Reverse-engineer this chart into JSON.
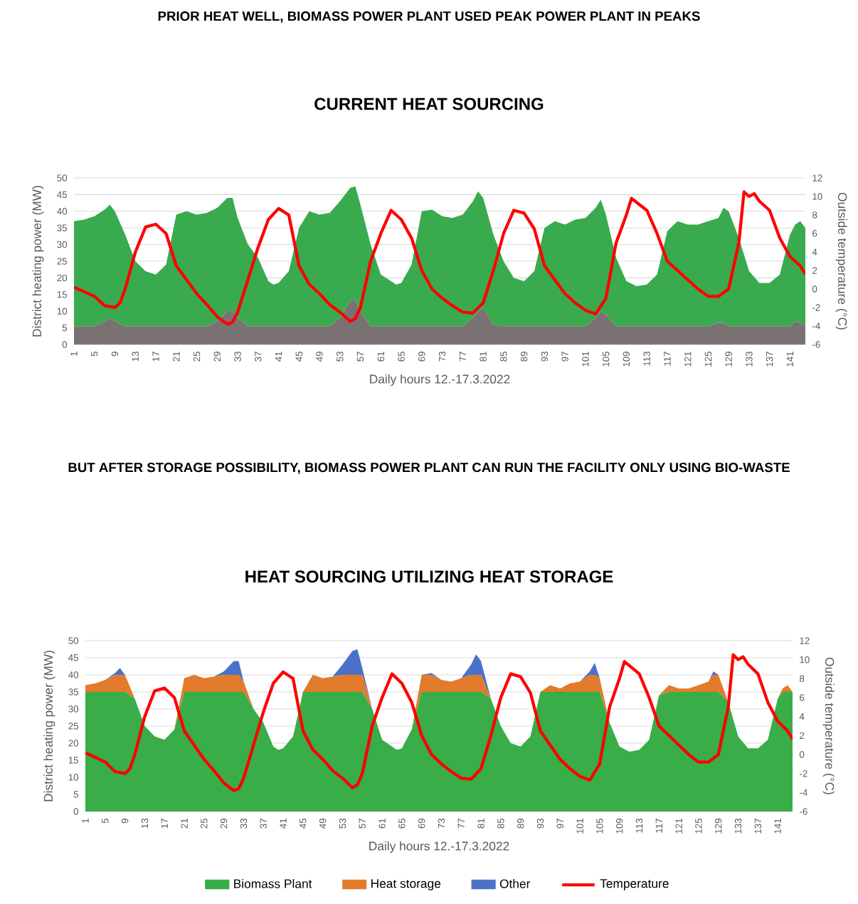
{
  "chart_data": [
    {
      "type": "area",
      "title": "CURRENT HEAT SOURCING",
      "annotations": [
        "PRIOR HEAT WELL, BIOMASS POWER PLANT USED PEAK POWER PLANT IN PEAKS"
      ],
      "xlabel": "Daily hours 12.-17.3.2022",
      "ylabel": "District heating power (MW)",
      "y2label": "Outside temperature (°C)",
      "stacked": true,
      "grid": "y",
      "legend": false,
      "x": [
        1,
        3,
        5,
        7,
        8,
        9,
        11,
        13,
        15,
        17,
        19,
        21,
        23,
        25,
        27,
        29,
        31,
        32,
        33,
        35,
        37,
        39,
        40,
        41,
        43,
        45,
        47,
        49,
        51,
        53,
        55,
        56,
        57,
        59,
        61,
        63,
        64,
        65,
        67,
        69,
        71,
        73,
        75,
        77,
        79,
        80,
        81,
        83,
        85,
        87,
        89,
        91,
        93,
        95,
        97,
        99,
        101,
        103,
        104,
        105,
        107,
        109,
        111,
        113,
        115,
        117,
        119,
        121,
        123,
        125,
        127,
        128,
        129,
        131,
        133,
        135,
        137,
        139,
        141,
        142,
        143,
        144
      ],
      "xlim": [
        1,
        144
      ],
      "xticks": [
        1,
        5,
        9,
        13,
        17,
        21,
        25,
        29,
        33,
        37,
        41,
        45,
        49,
        53,
        57,
        61,
        65,
        69,
        73,
        77,
        81,
        85,
        89,
        93,
        97,
        101,
        105,
        109,
        113,
        117,
        121,
        125,
        129,
        133,
        137,
        141
      ],
      "ylim": [
        0,
        50
      ],
      "yticks": [
        0,
        5,
        10,
        15,
        20,
        25,
        30,
        35,
        40,
        45,
        50
      ],
      "y2lim": [
        -6,
        12
      ],
      "y2ticks": [
        -6,
        -4,
        -2,
        0,
        2,
        4,
        6,
        8,
        10,
        12
      ],
      "series": [
        {
          "color": "#7a7272",
          "values": [
            5.5,
            5.5,
            5.5,
            7,
            8,
            7,
            5.5,
            5.5,
            5.5,
            5.5,
            5.5,
            5.5,
            5.5,
            5.5,
            5.5,
            7,
            10,
            10,
            8,
            5.5,
            5.5,
            5.5,
            5.5,
            5.5,
            5.5,
            5.5,
            5.5,
            5.5,
            5.5,
            8,
            13,
            13.5,
            10,
            5.5,
            5.5,
            5.5,
            5.5,
            5.5,
            5.5,
            5.5,
            5.5,
            5.5,
            5.5,
            5.5,
            8,
            10,
            11,
            6,
            5.5,
            5.5,
            5.5,
            5.5,
            5.5,
            5.5,
            5.5,
            5.5,
            5.5,
            8,
            10,
            9,
            5.5,
            5.5,
            5.5,
            5.5,
            5.5,
            5.5,
            5.5,
            5.5,
            5.5,
            5.5,
            6.5,
            6.5,
            5.5,
            5.5,
            5.5,
            5.5,
            5.5,
            5.5,
            5.5,
            7,
            6.5,
            5.5
          ]
        },
        {
          "color": "#3aaa4f",
          "values": [
            31.5,
            32,
            33,
            33.5,
            34,
            33,
            27.5,
            19.5,
            16.5,
            15.5,
            18.5,
            33.5,
            34.5,
            33.5,
            34,
            34,
            34,
            34,
            30,
            24.5,
            20.5,
            13.5,
            12.5,
            13,
            16.5,
            29.5,
            34.5,
            33.5,
            34,
            35,
            34,
            34,
            32,
            24.5,
            15.5,
            13.5,
            12.5,
            13,
            18.5,
            34.5,
            35,
            33,
            32.5,
            33.5,
            35,
            36,
            33,
            27,
            19.5,
            14.5,
            13.5,
            16.5,
            29.5,
            31.5,
            30.5,
            32,
            32.5,
            33,
            33.5,
            30,
            20.5,
            13.5,
            12,
            12.5,
            15.5,
            28.5,
            31.5,
            30.5,
            30.5,
            31.5,
            31.5,
            34.5,
            34.5,
            26.5,
            16.5,
            13,
            13,
            15.5,
            27.5,
            29,
            30.5,
            29.5
          ]
        },
        {
          "type": "line",
          "axis": "y2",
          "color": "#ff0000",
          "x": [
            1,
            3,
            5,
            7,
            9,
            10,
            11,
            13,
            15,
            17,
            19,
            21,
            23,
            25,
            27,
            29,
            31,
            32,
            33,
            35,
            37,
            39,
            41,
            43,
            45,
            47,
            49,
            51,
            53,
            55,
            56,
            57,
            59,
            61,
            63,
            65,
            67,
            69,
            71,
            73,
            75,
            77,
            79,
            81,
            83,
            85,
            87,
            89,
            91,
            93,
            95,
            97,
            99,
            101,
            103,
            105,
            107,
            109,
            110,
            113,
            115,
            117,
            119,
            121,
            123,
            125,
            127,
            129,
            131,
            132,
            133,
            134,
            135,
            137,
            139,
            141,
            143,
            144
          ],
          "values": [
            0.2,
            -0.3,
            -0.8,
            -1.8,
            -2,
            -1.5,
            0,
            4,
            6.7,
            7,
            6,
            2.5,
            1,
            -0.5,
            -1.7,
            -3,
            -3.8,
            -3.6,
            -2.5,
            1,
            4.5,
            7.5,
            8.7,
            8,
            2.5,
            0.5,
            -0.5,
            -1.7,
            -2.5,
            -3.5,
            -3.2,
            -2,
            3,
            6,
            8.5,
            7.5,
            5.5,
            2,
            0,
            -1,
            -1.8,
            -2.5,
            -2.6,
            -1.5,
            2,
            6,
            8.5,
            8.2,
            6.5,
            2.5,
            1,
            -0.5,
            -1.5,
            -2.3,
            -2.7,
            -1,
            5,
            8,
            9.8,
            8.5,
            6,
            3,
            2,
            1,
            0,
            -0.8,
            -0.8,
            0,
            5,
            10.5,
            10,
            10.3,
            9.5,
            8.5,
            5.5,
            3.5,
            2.5,
            1.6
          ]
        }
      ]
    },
    {
      "type": "area",
      "title": "HEAT SOURCING UTILIZING HEAT STORAGE",
      "annotations": [
        "BUT AFTER STORAGE POSSIBILITY, BIOMASS POWER PLANT CAN RUN THE FACILITY ONLY USING BIO-WASTE"
      ],
      "xlabel": "Daily hours 12.-17.3.2022",
      "ylabel": "District heating power (MW)",
      "y2label": "Outside temperature (°C)",
      "stacked": true,
      "grid": "y",
      "legend": "bottom",
      "x": [
        1,
        3,
        5,
        7,
        8,
        9,
        11,
        13,
        15,
        17,
        19,
        21,
        23,
        25,
        27,
        29,
        31,
        32,
        33,
        35,
        37,
        39,
        40,
        41,
        43,
        45,
        47,
        49,
        51,
        53,
        55,
        56,
        57,
        59,
        61,
        63,
        64,
        65,
        67,
        69,
        71,
        73,
        75,
        77,
        79,
        80,
        81,
        83,
        85,
        87,
        89,
        91,
        93,
        95,
        97,
        99,
        101,
        103,
        104,
        105,
        107,
        109,
        111,
        113,
        115,
        117,
        119,
        121,
        123,
        125,
        127,
        128,
        129,
        131,
        133,
        135,
        137,
        139,
        141,
        142,
        143,
        144
      ],
      "xlim": [
        1,
        144
      ],
      "xticks": [
        1,
        5,
        9,
        13,
        17,
        21,
        25,
        29,
        33,
        37,
        41,
        45,
        49,
        53,
        57,
        61,
        65,
        69,
        73,
        77,
        81,
        85,
        89,
        93,
        97,
        101,
        105,
        109,
        113,
        117,
        121,
        125,
        129,
        133,
        137,
        141
      ],
      "ylim": [
        0,
        50
      ],
      "yticks": [
        0,
        5,
        10,
        15,
        20,
        25,
        30,
        35,
        40,
        45,
        50
      ],
      "y2lim": [
        -6,
        12
      ],
      "y2ticks": [
        -6,
        -4,
        -2,
        0,
        2,
        4,
        6,
        8,
        10,
        12
      ],
      "series": [
        {
          "name": "Biomass Plant",
          "color": "#39ad48",
          "values": [
            35,
            35,
            35,
            35,
            35,
            35,
            33,
            25,
            22,
            21,
            24,
            35,
            35,
            35,
            35,
            35,
            35,
            35,
            35,
            30,
            26,
            19,
            18,
            18.5,
            22,
            35,
            35,
            35,
            35,
            35,
            35,
            35,
            35,
            30,
            21,
            19,
            18,
            18.5,
            24,
            35,
            35,
            35,
            35,
            35,
            35,
            35,
            35,
            33,
            25,
            20,
            19,
            22,
            35,
            35,
            35,
            35,
            35,
            35,
            35,
            35,
            26,
            19,
            17.5,
            18,
            21,
            34,
            35,
            35,
            35,
            35,
            35,
            35,
            35,
            32,
            22,
            18.5,
            18.5,
            21,
            33,
            35,
            35,
            35
          ]
        },
        {
          "name": "Heat storage",
          "color": "#e27b2b",
          "values": [
            2,
            2.5,
            3.5,
            5,
            5,
            5,
            0,
            0,
            0,
            0,
            0,
            4,
            5,
            4,
            4.5,
            5,
            5,
            5,
            3,
            0,
            0,
            0,
            0,
            0,
            0,
            0,
            5,
            4,
            4.5,
            5,
            5,
            5,
            5,
            0,
            0,
            0,
            0,
            0,
            0,
            5,
            5,
            3.5,
            3,
            4,
            5,
            5,
            5,
            0,
            0,
            0,
            0,
            0,
            0,
            2,
            1,
            2.5,
            3,
            5,
            5,
            4,
            0,
            0,
            0,
            0,
            0,
            0,
            2,
            1,
            1,
            2,
            3,
            5,
            5,
            0,
            0,
            0,
            0,
            0,
            0,
            1,
            2,
            0
          ]
        },
        {
          "name": "Other",
          "color": "#4a72c8",
          "values": [
            0,
            0,
            0,
            0.5,
            2,
            0,
            0,
            0,
            0,
            0,
            0,
            0,
            0,
            0,
            0,
            1,
            4,
            4,
            0,
            0,
            0,
            0,
            0,
            0,
            0,
            0,
            0,
            0,
            0,
            3,
            7,
            7.5,
            2,
            0,
            0,
            0,
            0,
            0,
            0,
            0,
            0.5,
            0,
            0,
            0,
            3,
            6,
            4,
            0,
            0,
            0,
            0,
            0,
            0,
            0,
            0,
            0,
            0,
            1,
            3.5,
            0,
            0,
            0,
            0,
            0,
            0,
            0,
            0,
            0,
            0,
            0,
            0,
            1,
            0,
            0,
            0,
            0,
            0,
            0,
            0,
            0,
            0,
            0
          ]
        },
        {
          "name": "Temperature",
          "type": "line",
          "axis": "y2",
          "color": "#ff0000",
          "x": [
            1,
            3,
            5,
            7,
            9,
            10,
            11,
            13,
            15,
            17,
            19,
            21,
            23,
            25,
            27,
            29,
            31,
            32,
            33,
            35,
            37,
            39,
            41,
            43,
            45,
            47,
            49,
            51,
            53,
            55,
            56,
            57,
            59,
            61,
            63,
            65,
            67,
            69,
            71,
            73,
            75,
            77,
            79,
            81,
            83,
            85,
            87,
            89,
            91,
            93,
            95,
            97,
            99,
            101,
            103,
            105,
            107,
            109,
            110,
            113,
            115,
            117,
            119,
            121,
            123,
            125,
            127,
            129,
            131,
            132,
            133,
            134,
            135,
            137,
            139,
            141,
            143,
            144
          ],
          "values": [
            0.2,
            -0.3,
            -0.8,
            -1.8,
            -2,
            -1.5,
            0,
            4,
            6.7,
            7,
            6,
            2.5,
            1,
            -0.5,
            -1.7,
            -3,
            -3.8,
            -3.6,
            -2.5,
            1,
            4.5,
            7.5,
            8.7,
            8,
            2.5,
            0.5,
            -0.5,
            -1.7,
            -2.5,
            -3.5,
            -3.2,
            -2,
            3,
            6,
            8.5,
            7.5,
            5.5,
            2,
            0,
            -1,
            -1.8,
            -2.5,
            -2.6,
            -1.5,
            2,
            6,
            8.5,
            8.2,
            6.5,
            2.5,
            1,
            -0.5,
            -1.5,
            -2.3,
            -2.7,
            -1,
            5,
            8,
            9.8,
            8.5,
            6,
            3,
            2,
            1,
            0,
            -0.8,
            -0.8,
            0,
            5,
            10.5,
            10,
            10.3,
            9.5,
            8.5,
            5.5,
            3.5,
            2.5,
            1.6
          ]
        }
      ]
    }
  ]
}
